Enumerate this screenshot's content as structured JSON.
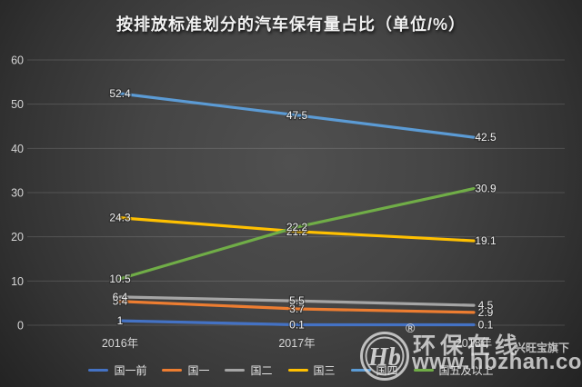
{
  "title": "按排放标准划分的汽车保有量占比（单位/%）",
  "chart_data": {
    "type": "line",
    "categories": [
      "2016年",
      "2017年",
      "2018年"
    ],
    "series": [
      {
        "name": "国一前",
        "color": "#4472C4",
        "values": [
          1,
          0.1,
          0.1
        ]
      },
      {
        "name": "国一",
        "color": "#ED7D31",
        "values": [
          5.4,
          3.7,
          2.9
        ]
      },
      {
        "name": "国二",
        "color": "#A5A5A5",
        "values": [
          6.4,
          5.5,
          4.5
        ]
      },
      {
        "name": "国三",
        "color": "#FFC000",
        "values": [
          24.3,
          21.2,
          19.1
        ]
      },
      {
        "name": "国四",
        "color": "#5B9BD5",
        "values": [
          52.4,
          47.5,
          42.5
        ]
      },
      {
        "name": "国五及以上",
        "color": "#70AD47",
        "values": [
          10.5,
          22.2,
          30.9
        ]
      }
    ],
    "yticks": [
      0,
      10,
      20,
      30,
      40,
      50,
      60
    ],
    "ylim": [
      0,
      60
    ],
    "grid": true,
    "data_labels": true,
    "legend_position": "bottom"
  },
  "watermark": {
    "logo_text": "Hb",
    "registered": "®",
    "brand": "环保在线",
    "tagline": "兴旺宝旗下",
    "url": "www.hbzhan.com"
  },
  "colors": {
    "background_center": "#505050",
    "background_edge": "#232323",
    "gridline": "rgba(255,255,255,0.14)",
    "tick_label": "#d6d6d6",
    "data_label": "#eeeeee",
    "title": "#f2f2f2"
  }
}
